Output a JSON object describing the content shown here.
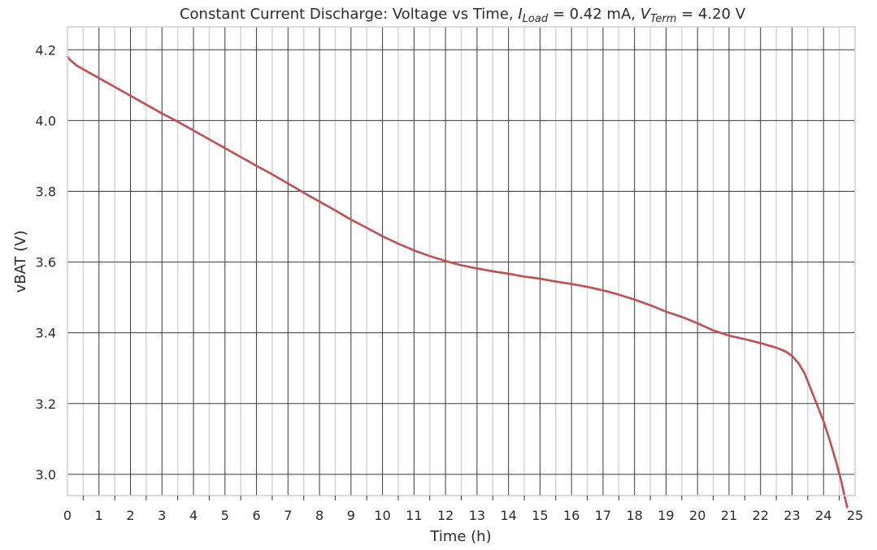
{
  "chart_data": {
    "type": "line",
    "title": {
      "prefix": "Constant Current Discharge: Voltage vs Time, ",
      "iload_symbol": "I",
      "iload_subscript": "Load",
      "iload_value": " = 0.42 mA, ",
      "vterm_symbol": "V",
      "vterm_subscript": "Term",
      "vterm_value": " = 4.20 V"
    },
    "xlabel": "Time (h)",
    "ylabel": "vBAT (V)",
    "xlim": [
      0,
      25
    ],
    "ylim": [
      2.94,
      4.265
    ],
    "xticks": [
      0,
      1,
      2,
      3,
      4,
      5,
      6,
      7,
      8,
      9,
      10,
      11,
      12,
      13,
      14,
      15,
      16,
      17,
      18,
      19,
      20,
      21,
      22,
      23,
      24,
      25
    ],
    "yticks": [
      3.0,
      3.2,
      3.4,
      3.6,
      3.8,
      4.0,
      4.2
    ],
    "ytick_labels": [
      "3.0",
      "3.2",
      "3.4",
      "3.6",
      "3.8",
      "4.0",
      "4.2"
    ],
    "grid": "major and minor",
    "line_color": "#c44e52",
    "series": [
      {
        "x": [
          0,
          0.1,
          0.3,
          0.6,
          1,
          1.5,
          2,
          2.5,
          3,
          3.5,
          4,
          4.5,
          5,
          5.5,
          6,
          6.5,
          7,
          7.5,
          8,
          8.5,
          9,
          9.5,
          10,
          10.5,
          11,
          11.5,
          12,
          12.5,
          13,
          13.5,
          14,
          14.5,
          15,
          15.5,
          16,
          16.5,
          17,
          17.5,
          18,
          18.5,
          19,
          19.5,
          20,
          20.5,
          21,
          21.5,
          22,
          22.5,
          22.8,
          23,
          23.2,
          23.4,
          23.6,
          23.8,
          24,
          24.2,
          24.4,
          24.55,
          24.65,
          24.75
        ],
        "y": [
          4.18,
          4.17,
          4.155,
          4.14,
          4.12,
          4.095,
          4.07,
          4.045,
          4.02,
          3.997,
          3.972,
          3.947,
          3.922,
          3.897,
          3.872,
          3.848,
          3.822,
          3.796,
          3.771,
          3.746,
          3.72,
          3.697,
          3.673,
          3.652,
          3.633,
          3.617,
          3.603,
          3.591,
          3.582,
          3.574,
          3.567,
          3.559,
          3.553,
          3.545,
          3.538,
          3.53,
          3.52,
          3.508,
          3.494,
          3.478,
          3.46,
          3.445,
          3.427,
          3.407,
          3.392,
          3.382,
          3.371,
          3.358,
          3.347,
          3.335,
          3.315,
          3.285,
          3.24,
          3.195,
          3.15,
          3.095,
          3.035,
          2.985,
          2.945,
          2.907
        ]
      }
    ]
  }
}
